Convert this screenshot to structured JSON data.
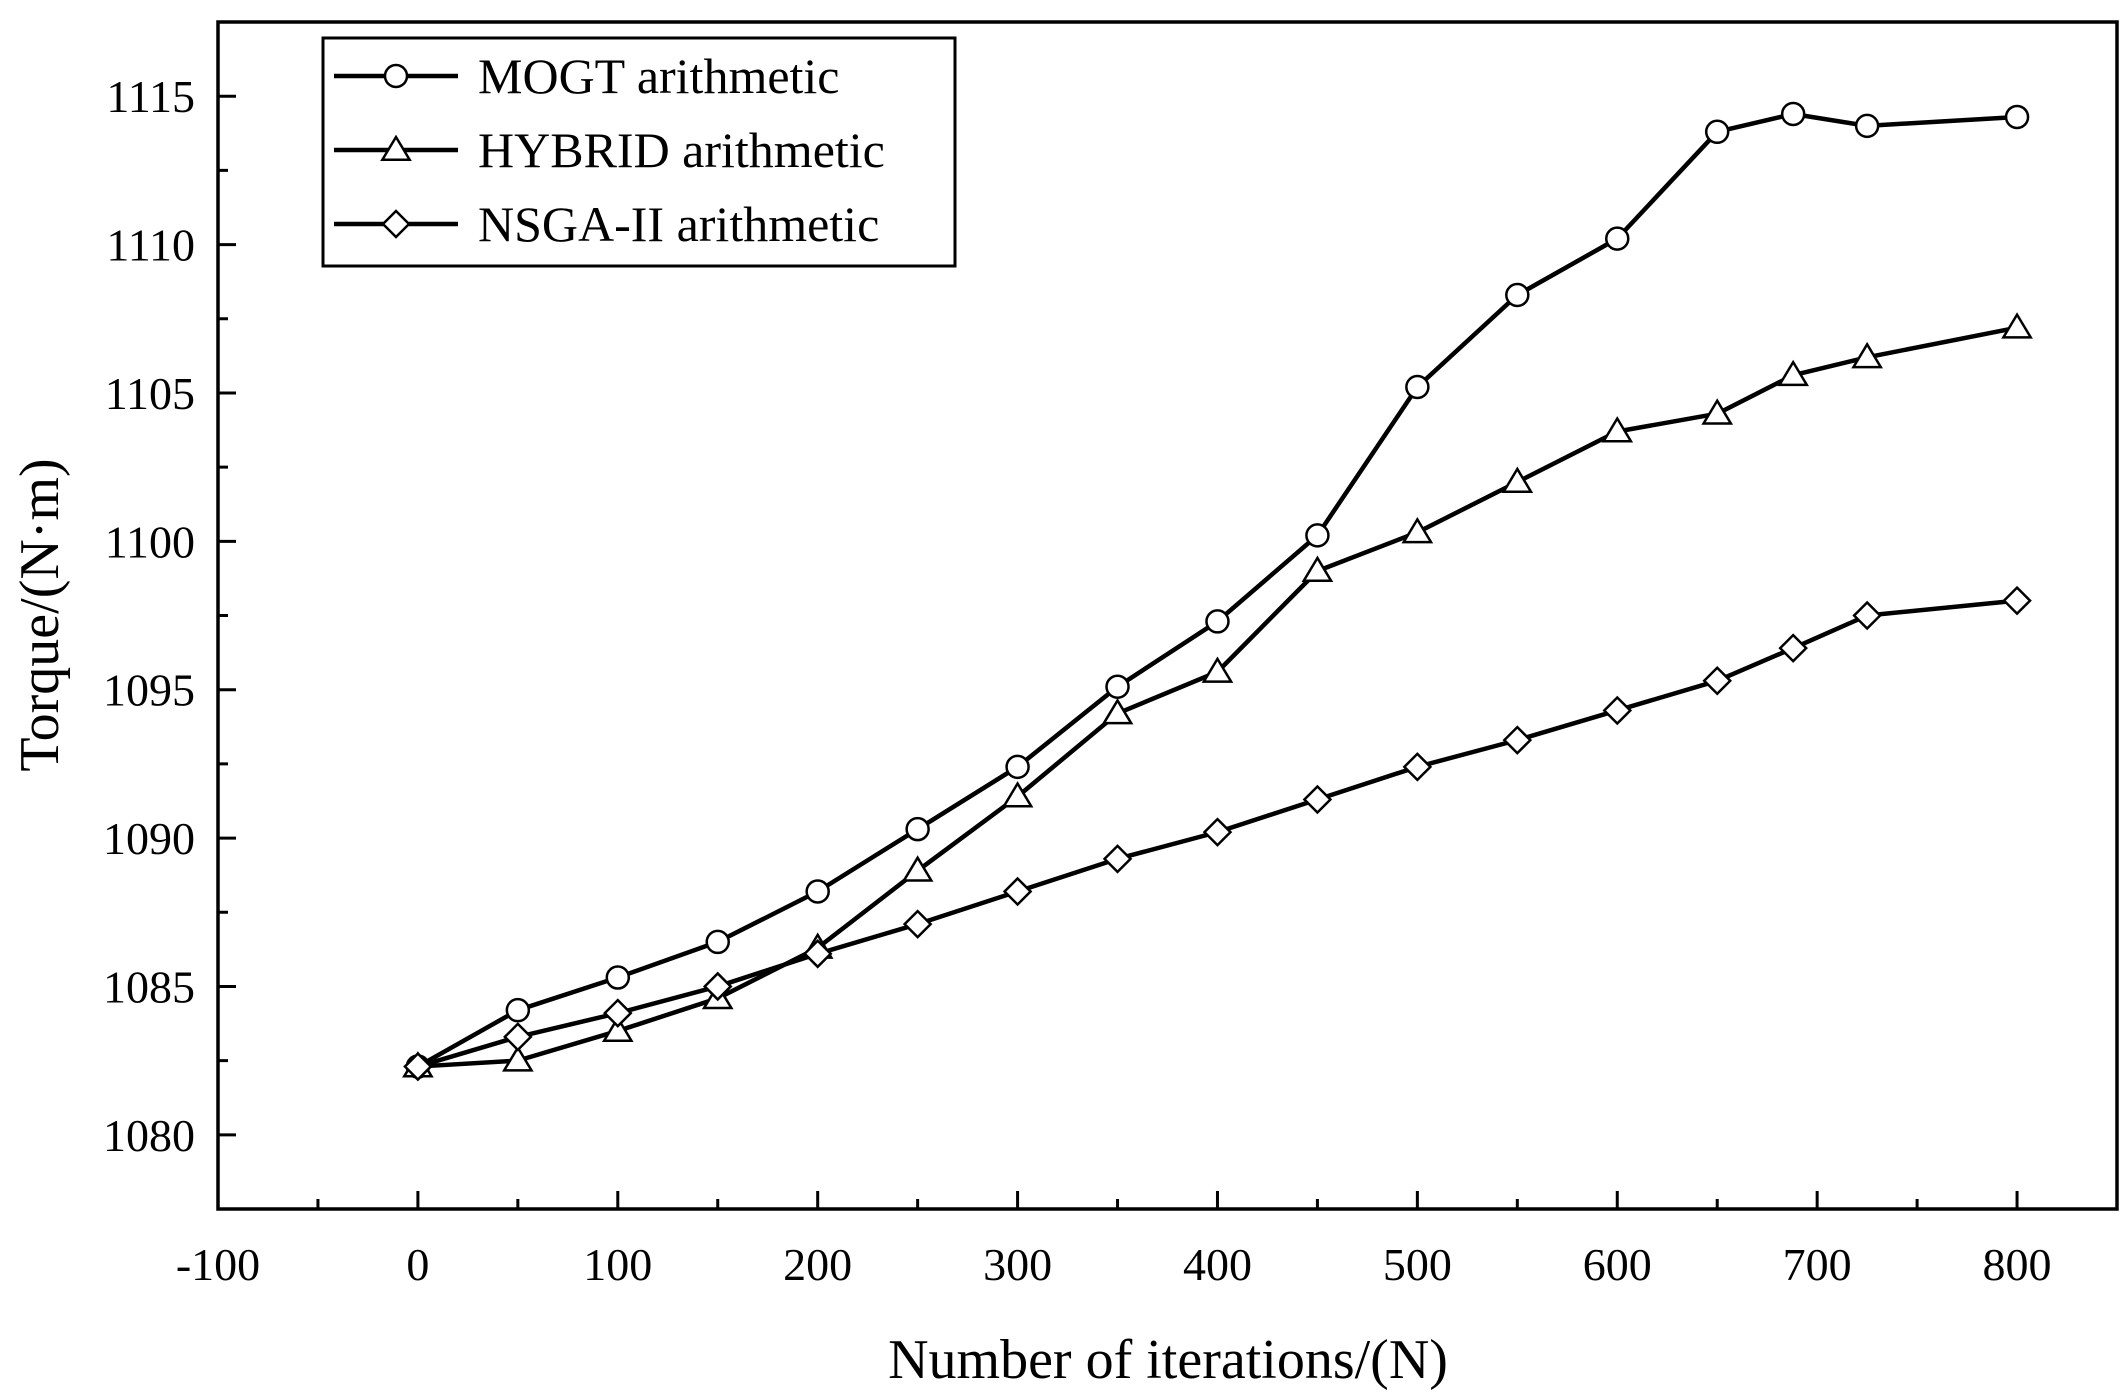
{
  "chart_data": {
    "type": "line",
    "title": "",
    "xlabel": "Number of iterations/(N)",
    "ylabel": "Torque/(N·m)",
    "xlim": [
      -100,
      850
    ],
    "ylim": [
      1077.5,
      1117.5
    ],
    "xticks": [
      -100,
      0,
      100,
      200,
      300,
      400,
      500,
      600,
      700,
      800
    ],
    "xtick_labels": [
      "-100",
      "0",
      "100",
      "200",
      "300",
      "400",
      "500",
      "600",
      "700",
      "800"
    ],
    "yticks": [
      1080,
      1085,
      1090,
      1095,
      1100,
      1105,
      1110,
      1115
    ],
    "ytick_labels": [
      "1080",
      "1085",
      "1090",
      "1095",
      "1100",
      "1105",
      "1110",
      "1115"
    ],
    "grid": false,
    "legend_position": "top-left",
    "series": [
      {
        "name": "MOGT arithmetic",
        "marker": "circle",
        "x": [
          0,
          50,
          100,
          150,
          200,
          250,
          300,
          350,
          400,
          450,
          500,
          550,
          600,
          650,
          688,
          725,
          800
        ],
        "values": [
          1082.3,
          1084.2,
          1085.3,
          1086.5,
          1088.2,
          1090.3,
          1092.4,
          1095.1,
          1097.3,
          1100.2,
          1105.2,
          1108.3,
          1110.2,
          1113.8,
          1114.4,
          1114.0,
          1114.3
        ]
      },
      {
        "name": "HYBRID arithmetic",
        "marker": "triangle",
        "x": [
          0,
          50,
          100,
          150,
          200,
          250,
          300,
          350,
          400,
          450,
          500,
          550,
          600,
          650,
          688,
          725,
          800
        ],
        "values": [
          1082.3,
          1082.5,
          1083.5,
          1084.6,
          1086.3,
          1088.9,
          1091.4,
          1094.2,
          1095.6,
          1099.0,
          1100.3,
          1102.0,
          1103.7,
          1104.3,
          1105.6,
          1106.2,
          1107.2
        ]
      },
      {
        "name": "NSGA-II arithmetic",
        "marker": "diamond",
        "x": [
          0,
          50,
          100,
          150,
          200,
          250,
          300,
          350,
          400,
          450,
          500,
          550,
          600,
          650,
          688,
          725,
          800
        ],
        "values": [
          1082.3,
          1083.3,
          1084.1,
          1085.0,
          1086.1,
          1087.1,
          1088.2,
          1089.3,
          1090.2,
          1091.3,
          1092.4,
          1093.3,
          1094.3,
          1095.3,
          1096.4,
          1097.5,
          1098.0
        ]
      }
    ]
  }
}
